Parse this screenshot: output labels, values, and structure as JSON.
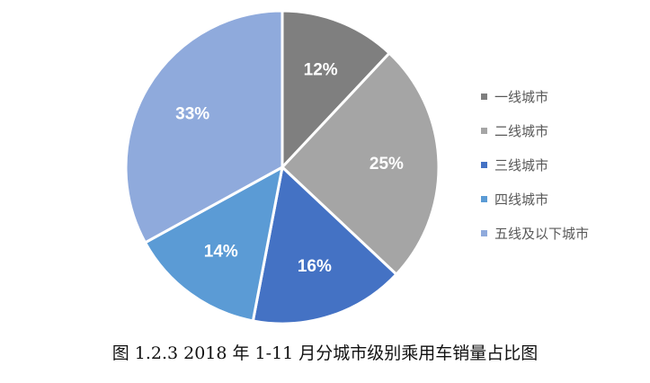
{
  "chart_data": {
    "type": "pie",
    "title": "图 1.2.3 2018 年 1-11 月分城市级别乘用车销量占比图",
    "categories": [
      "一线城市",
      "二线城市",
      "三线城市",
      "四线城市",
      "五线及以下城市"
    ],
    "values": [
      12,
      25,
      16,
      14,
      33
    ],
    "labels": [
      "12%",
      "25%",
      "16%",
      "14%",
      "33%"
    ],
    "colors": [
      "#7f7f7f",
      "#a5a5a5",
      "#4472c4",
      "#5b9bd5",
      "#8faadc"
    ],
    "legend_position": "right"
  }
}
